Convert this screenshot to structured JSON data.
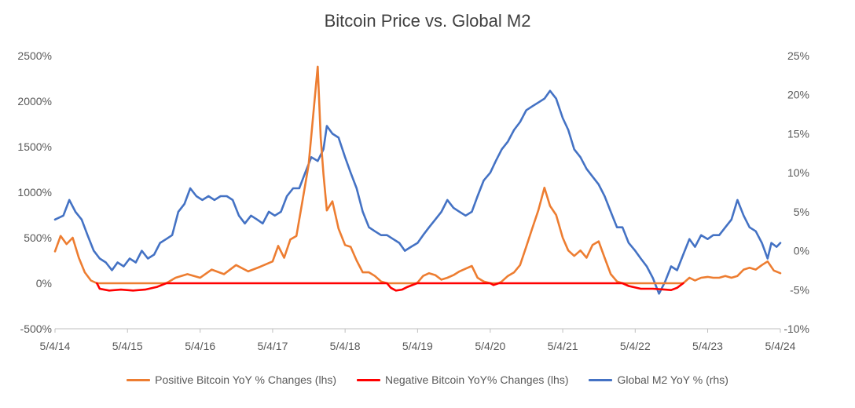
{
  "chart_data": {
    "type": "line",
    "title": "Bitcoin Price vs. Global M2",
    "x_ticks": [
      "5/4/14",
      "5/4/15",
      "5/4/16",
      "5/4/17",
      "5/4/18",
      "5/4/19",
      "5/4/20",
      "5/4/21",
      "5/4/22",
      "5/4/23",
      "5/4/24"
    ],
    "x_range": [
      "2014-05-04",
      "2024-05-04"
    ],
    "y_left": {
      "ticks": [
        "2500%",
        "2000%",
        "1500%",
        "1000%",
        "500%",
        "0%",
        "-500%"
      ],
      "ylim": [
        -500,
        2500
      ],
      "unit": "%"
    },
    "y_right": {
      "ticks": [
        "25%",
        "20%",
        "15%",
        "10%",
        "5%",
        "0%",
        "-5%",
        "-10%"
      ],
      "ylim": [
        -10,
        25
      ],
      "unit": "%"
    },
    "grid": false,
    "legend_position": "bottom",
    "series": [
      {
        "name": "Positive Bitcoin YoY % Changes (lhs)",
        "axis": "left",
        "color": "#ED7D31",
        "points": [
          [
            "2014-05-04",
            350
          ],
          [
            "2014-06-01",
            520
          ],
          [
            "2014-07-01",
            430
          ],
          [
            "2014-08-01",
            500
          ],
          [
            "2014-09-01",
            280
          ],
          [
            "2014-10-01",
            120
          ],
          [
            "2014-11-01",
            30
          ],
          [
            "2014-12-01",
            0
          ],
          [
            "2015-11-15",
            0
          ],
          [
            "2016-01-01",
            60
          ],
          [
            "2016-03-01",
            100
          ],
          [
            "2016-05-04",
            60
          ],
          [
            "2016-07-01",
            150
          ],
          [
            "2016-09-01",
            100
          ],
          [
            "2016-11-01",
            200
          ],
          [
            "2017-01-01",
            130
          ],
          [
            "2017-03-01",
            180
          ],
          [
            "2017-05-04",
            240
          ],
          [
            "2017-06-01",
            410
          ],
          [
            "2017-07-01",
            280
          ],
          [
            "2017-08-01",
            480
          ],
          [
            "2017-09-01",
            520
          ],
          [
            "2017-10-01",
            900
          ],
          [
            "2017-11-01",
            1300
          ],
          [
            "2017-12-01",
            2000
          ],
          [
            "2017-12-17",
            2380
          ],
          [
            "2018-01-01",
            1600
          ],
          [
            "2018-01-15",
            1200
          ],
          [
            "2018-02-01",
            800
          ],
          [
            "2018-03-01",
            900
          ],
          [
            "2018-04-01",
            600
          ],
          [
            "2018-05-04",
            420
          ],
          [
            "2018-06-01",
            400
          ],
          [
            "2018-07-01",
            250
          ],
          [
            "2018-08-01",
            120
          ],
          [
            "2018-09-01",
            120
          ],
          [
            "2018-10-01",
            80
          ],
          [
            "2018-11-01",
            20
          ],
          [
            "2018-12-01",
            0
          ],
          [
            "2019-05-01",
            0
          ],
          [
            "2019-06-01",
            80
          ],
          [
            "2019-07-01",
            110
          ],
          [
            "2019-08-01",
            90
          ],
          [
            "2019-09-01",
            40
          ],
          [
            "2019-10-01",
            60
          ],
          [
            "2019-11-01",
            90
          ],
          [
            "2019-12-01",
            130
          ],
          [
            "2020-01-01",
            160
          ],
          [
            "2020-02-01",
            190
          ],
          [
            "2020-03-01",
            60
          ],
          [
            "2020-04-01",
            20
          ],
          [
            "2020-05-04",
            0
          ],
          [
            "2020-06-15",
            0
          ],
          [
            "2020-07-01",
            20
          ],
          [
            "2020-08-01",
            80
          ],
          [
            "2020-09-01",
            120
          ],
          [
            "2020-10-01",
            200
          ],
          [
            "2020-11-01",
            400
          ],
          [
            "2020-12-01",
            600
          ],
          [
            "2021-01-01",
            800
          ],
          [
            "2021-02-01",
            1050
          ],
          [
            "2021-03-01",
            850
          ],
          [
            "2021-04-01",
            750
          ],
          [
            "2021-05-04",
            500
          ],
          [
            "2021-06-01",
            360
          ],
          [
            "2021-07-01",
            300
          ],
          [
            "2021-08-01",
            360
          ],
          [
            "2021-09-01",
            280
          ],
          [
            "2021-10-01",
            420
          ],
          [
            "2021-11-01",
            460
          ],
          [
            "2021-12-01",
            280
          ],
          [
            "2022-01-01",
            100
          ],
          [
            "2022-02-01",
            20
          ],
          [
            "2022-03-01",
            0
          ],
          [
            "2023-01-01",
            0
          ],
          [
            "2023-02-01",
            60
          ],
          [
            "2023-03-01",
            30
          ],
          [
            "2023-04-01",
            60
          ],
          [
            "2023-05-04",
            70
          ],
          [
            "2023-06-01",
            60
          ],
          [
            "2023-07-01",
            60
          ],
          [
            "2023-08-01",
            80
          ],
          [
            "2023-09-01",
            60
          ],
          [
            "2023-10-01",
            80
          ],
          [
            "2023-11-01",
            150
          ],
          [
            "2023-12-01",
            170
          ],
          [
            "2024-01-01",
            150
          ],
          [
            "2024-02-01",
            200
          ],
          [
            "2024-03-01",
            240
          ],
          [
            "2024-04-01",
            140
          ],
          [
            "2024-05-04",
            110
          ]
        ]
      },
      {
        "name": "Negative Bitcoin YoY% Changes (lhs)",
        "axis": "left",
        "color": "#FF0000",
        "points": [
          [
            "2014-12-01",
            0
          ],
          [
            "2014-12-15",
            -60
          ],
          [
            "2015-02-01",
            -80
          ],
          [
            "2015-04-01",
            -70
          ],
          [
            "2015-06-01",
            -80
          ],
          [
            "2015-08-01",
            -70
          ],
          [
            "2015-10-01",
            -40
          ],
          [
            "2015-11-15",
            0
          ],
          [
            "2018-12-01",
            0
          ],
          [
            "2018-12-20",
            -50
          ],
          [
            "2019-01-15",
            -80
          ],
          [
            "2019-02-15",
            -70
          ],
          [
            "2019-03-15",
            -40
          ],
          [
            "2019-05-01",
            0
          ],
          [
            "2020-05-04",
            0
          ],
          [
            "2020-05-20",
            -20
          ],
          [
            "2020-06-15",
            0
          ],
          [
            "2022-03-01",
            0
          ],
          [
            "2022-04-01",
            -30
          ],
          [
            "2022-06-01",
            -60
          ],
          [
            "2022-08-01",
            -60
          ],
          [
            "2022-10-01",
            -70
          ],
          [
            "2022-11-01",
            -75
          ],
          [
            "2022-12-01",
            -50
          ],
          [
            "2023-01-01",
            0
          ]
        ]
      },
      {
        "name": "Global M2 YoY % (rhs)",
        "axis": "right",
        "color": "#4472C4",
        "points": [
          [
            "2014-05-04",
            4
          ],
          [
            "2014-06-15",
            4.5
          ],
          [
            "2014-07-15",
            6.5
          ],
          [
            "2014-08-15",
            5
          ],
          [
            "2014-09-15",
            4
          ],
          [
            "2014-10-15",
            2
          ],
          [
            "2014-11-15",
            0
          ],
          [
            "2014-12-15",
            -1
          ],
          [
            "2015-01-15",
            -1.5
          ],
          [
            "2015-02-15",
            -2.5
          ],
          [
            "2015-03-15",
            -1.5
          ],
          [
            "2015-04-15",
            -2
          ],
          [
            "2015-05-15",
            -1
          ],
          [
            "2015-06-15",
            -1.5
          ],
          [
            "2015-07-15",
            0
          ],
          [
            "2015-08-15",
            -1
          ],
          [
            "2015-09-15",
            -0.5
          ],
          [
            "2015-10-15",
            1
          ],
          [
            "2015-11-15",
            1.5
          ],
          [
            "2015-12-15",
            2
          ],
          [
            "2016-01-15",
            5
          ],
          [
            "2016-02-15",
            6
          ],
          [
            "2016-03-15",
            8
          ],
          [
            "2016-04-15",
            7
          ],
          [
            "2016-05-15",
            6.5
          ],
          [
            "2016-06-15",
            7
          ],
          [
            "2016-07-15",
            6.5
          ],
          [
            "2016-08-15",
            7
          ],
          [
            "2016-09-15",
            7
          ],
          [
            "2016-10-15",
            6.5
          ],
          [
            "2016-11-15",
            4.5
          ],
          [
            "2016-12-15",
            3.5
          ],
          [
            "2017-01-15",
            4.5
          ],
          [
            "2017-02-15",
            4
          ],
          [
            "2017-03-15",
            3.5
          ],
          [
            "2017-04-15",
            5
          ],
          [
            "2017-05-15",
            4.5
          ],
          [
            "2017-06-15",
            5
          ],
          [
            "2017-07-15",
            7
          ],
          [
            "2017-08-15",
            8
          ],
          [
            "2017-09-15",
            8
          ],
          [
            "2017-10-15",
            10
          ],
          [
            "2017-11-15",
            12
          ],
          [
            "2017-12-17",
            11.5
          ],
          [
            "2018-01-15",
            13
          ],
          [
            "2018-02-01",
            16
          ],
          [
            "2018-03-01",
            15
          ],
          [
            "2018-04-01",
            14.5
          ],
          [
            "2018-05-04",
            12
          ],
          [
            "2018-06-01",
            10
          ],
          [
            "2018-07-01",
            8
          ],
          [
            "2018-08-01",
            5
          ],
          [
            "2018-09-01",
            3
          ],
          [
            "2018-10-01",
            2.5
          ],
          [
            "2018-11-01",
            2
          ],
          [
            "2018-12-01",
            2
          ],
          [
            "2019-01-01",
            1.5
          ],
          [
            "2019-02-01",
            1
          ],
          [
            "2019-03-01",
            0
          ],
          [
            "2019-04-01",
            0.5
          ],
          [
            "2019-05-04",
            1
          ],
          [
            "2019-06-01",
            2
          ],
          [
            "2019-07-01",
            3
          ],
          [
            "2019-08-01",
            4
          ],
          [
            "2019-09-01",
            5
          ],
          [
            "2019-10-01",
            6.5
          ],
          [
            "2019-11-01",
            5.5
          ],
          [
            "2019-12-01",
            5
          ],
          [
            "2020-01-01",
            4.5
          ],
          [
            "2020-02-01",
            5
          ],
          [
            "2020-03-01",
            7
          ],
          [
            "2020-04-01",
            9
          ],
          [
            "2020-05-04",
            10
          ],
          [
            "2020-06-01",
            11.5
          ],
          [
            "2020-07-01",
            13
          ],
          [
            "2020-08-01",
            14
          ],
          [
            "2020-09-01",
            15.5
          ],
          [
            "2020-10-01",
            16.5
          ],
          [
            "2020-11-01",
            18
          ],
          [
            "2020-12-01",
            18.5
          ],
          [
            "2021-01-01",
            19
          ],
          [
            "2021-02-01",
            19.5
          ],
          [
            "2021-03-01",
            20.5
          ],
          [
            "2021-04-01",
            19.5
          ],
          [
            "2021-05-04",
            17
          ],
          [
            "2021-06-01",
            15.5
          ],
          [
            "2021-07-01",
            13
          ],
          [
            "2021-08-01",
            12
          ],
          [
            "2021-09-01",
            10.5
          ],
          [
            "2021-10-01",
            9.5
          ],
          [
            "2021-11-01",
            8.5
          ],
          [
            "2021-12-01",
            7
          ],
          [
            "2022-01-01",
            5
          ],
          [
            "2022-02-01",
            3
          ],
          [
            "2022-03-01",
            3
          ],
          [
            "2022-04-01",
            1
          ],
          [
            "2022-05-04",
            0
          ],
          [
            "2022-06-01",
            -1
          ],
          [
            "2022-07-01",
            -2
          ],
          [
            "2022-08-01",
            -3.5
          ],
          [
            "2022-09-01",
            -5.5
          ],
          [
            "2022-10-01",
            -4
          ],
          [
            "2022-11-01",
            -2
          ],
          [
            "2022-12-01",
            -2.5
          ],
          [
            "2023-01-01",
            -0.5
          ],
          [
            "2023-02-01",
            1.5
          ],
          [
            "2023-03-01",
            0.5
          ],
          [
            "2023-04-01",
            2
          ],
          [
            "2023-05-04",
            1.5
          ],
          [
            "2023-06-01",
            2
          ],
          [
            "2023-07-01",
            2
          ],
          [
            "2023-08-01",
            3
          ],
          [
            "2023-09-01",
            4
          ],
          [
            "2023-10-01",
            6.5
          ],
          [
            "2023-11-01",
            4.5
          ],
          [
            "2023-12-01",
            3
          ],
          [
            "2024-01-01",
            2.5
          ],
          [
            "2024-02-01",
            1
          ],
          [
            "2024-03-01",
            -1
          ],
          [
            "2024-03-20",
            1
          ],
          [
            "2024-04-15",
            0.5
          ],
          [
            "2024-05-04",
            1
          ]
        ]
      }
    ]
  }
}
